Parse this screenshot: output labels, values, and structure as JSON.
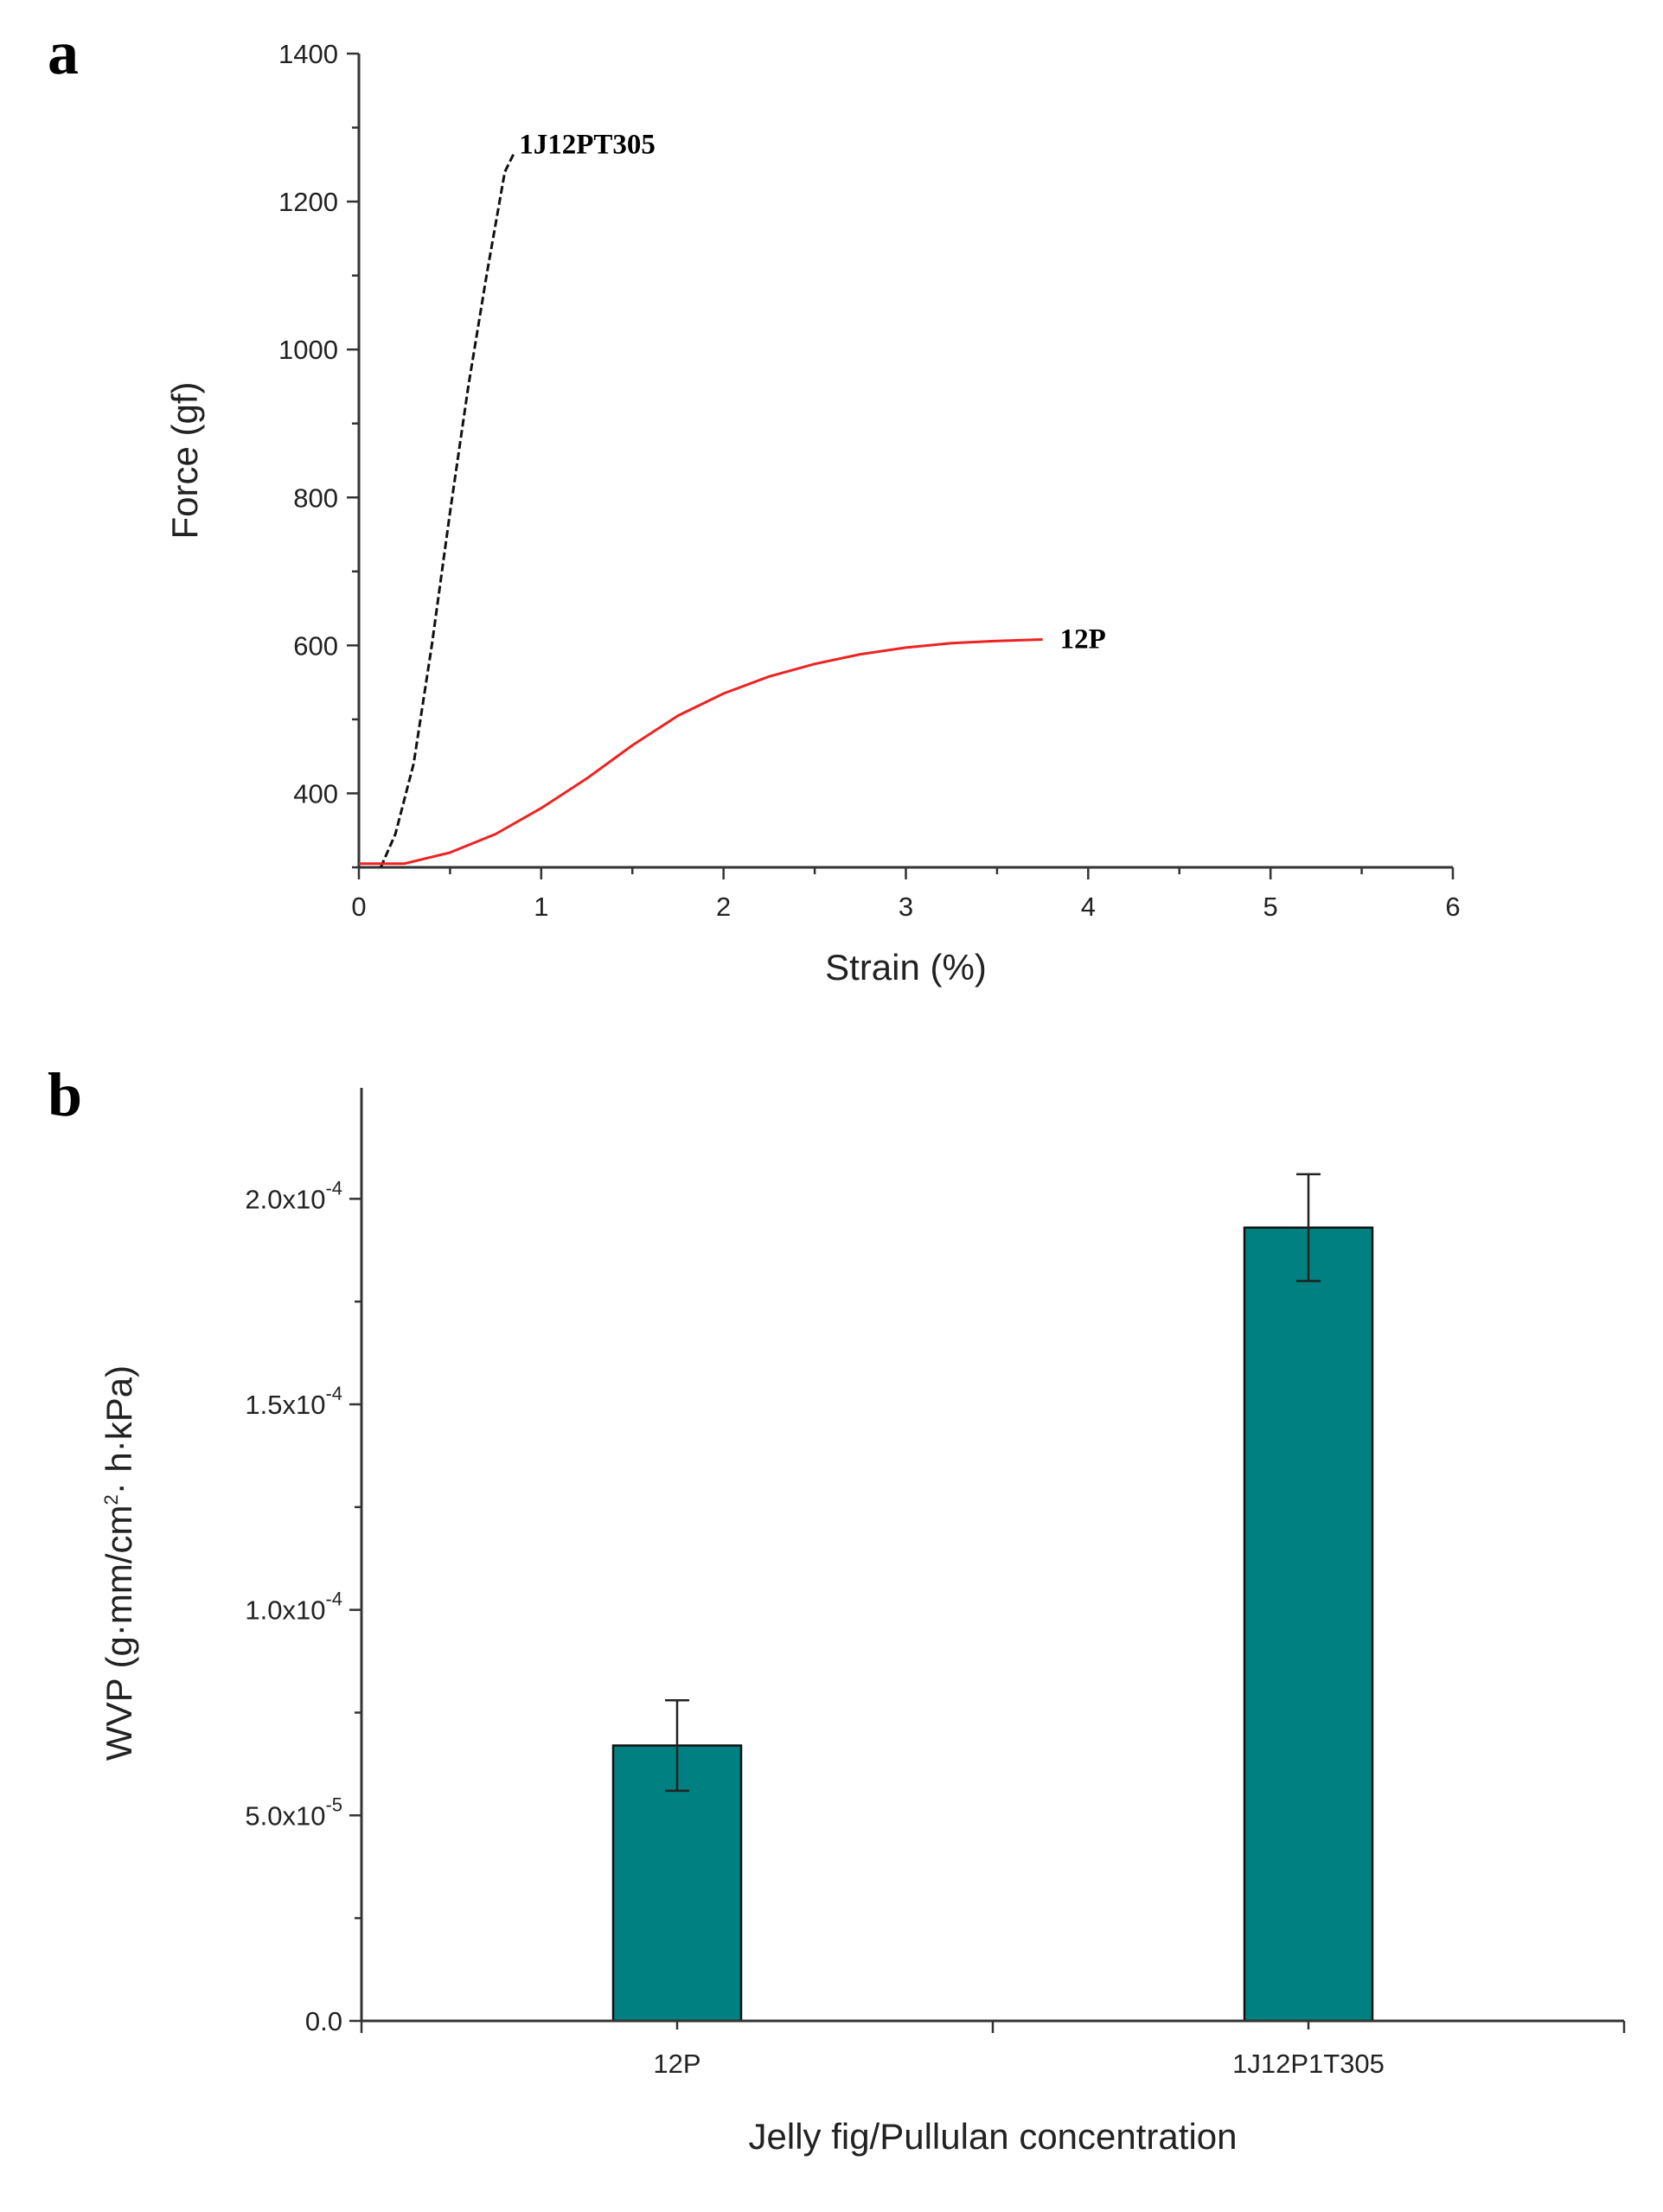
{
  "chart_data": [
    {
      "panel": "a",
      "type": "line",
      "xlabel": "Strain (%)",
      "ylabel": "Force (gf)",
      "xlim": [
        0,
        6
      ],
      "ylim": [
        300,
        1400
      ],
      "xticks": [
        0,
        1,
        2,
        3,
        4,
        5,
        6
      ],
      "yticks": [
        400,
        600,
        800,
        1000,
        1200,
        1400
      ],
      "series": [
        {
          "name": "1J12PT305",
          "color": "#111111",
          "x": [
            0.12,
            0.2,
            0.3,
            0.4,
            0.5,
            0.6,
            0.7,
            0.8,
            0.85
          ],
          "y": [
            300,
            345,
            440,
            600,
            780,
            950,
            1100,
            1240,
            1265
          ]
        },
        {
          "name": "12P",
          "color": "#ee2222",
          "x": [
            0,
            0.25,
            0.5,
            0.75,
            1.0,
            1.25,
            1.5,
            1.75,
            2.0,
            2.25,
            2.5,
            2.75,
            3.0,
            3.25,
            3.5,
            3.75
          ],
          "y": [
            305,
            305,
            320,
            345,
            380,
            420,
            465,
            505,
            535,
            558,
            575,
            588,
            597,
            603,
            606,
            608
          ]
        }
      ]
    },
    {
      "panel": "b",
      "type": "bar",
      "xlabel": "Jelly fig/Pullulan concentration",
      "ylabel_main": "WVP (g·mm/cm",
      "ylabel_sup": "2",
      "ylabel_rest": "· h·kPa)",
      "categories": [
        "12P",
        "1J12P1T305"
      ],
      "values": [
        6.7e-05,
        0.000193
      ],
      "errors": [
        1.1e-05,
        1.3e-05
      ],
      "bar_color": "#008080",
      "ylim": [
        0,
        0.000227
      ],
      "yticks": [
        {
          "value": 0,
          "base": "0.0",
          "exp": ""
        },
        {
          "value": 5e-05,
          "base": "5.0x10",
          "exp": "-5"
        },
        {
          "value": 0.0001,
          "base": "1.0x10",
          "exp": "-4"
        },
        {
          "value": 0.00015,
          "base": "1.5x10",
          "exp": "-4"
        },
        {
          "value": 0.0002,
          "base": "2.0x10",
          "exp": "-4"
        }
      ]
    }
  ]
}
